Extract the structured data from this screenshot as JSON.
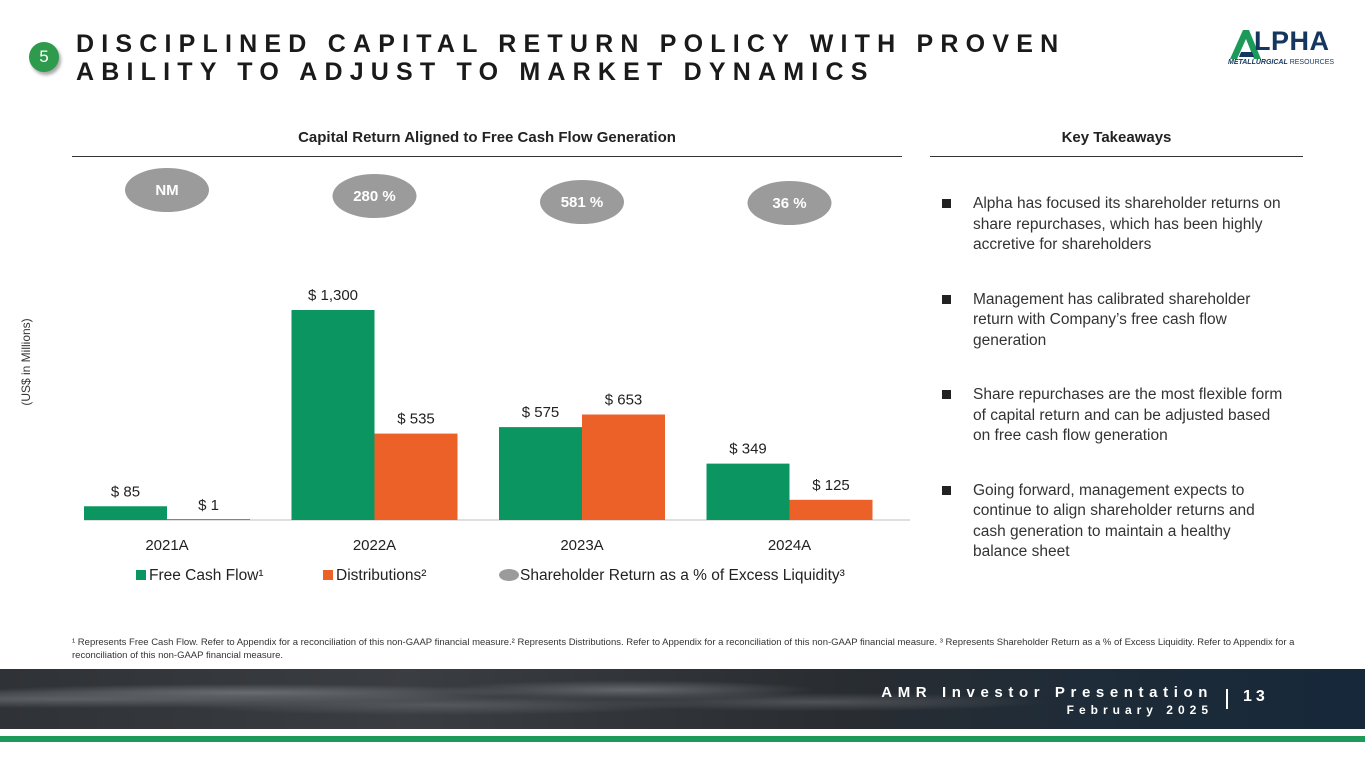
{
  "slide": {
    "badge_number": "5",
    "title": "DISCIPLINED CAPITAL RETURN POLICY WITH PROVEN ABILITY TO ADJUST TO MARKET DYNAMICS",
    "logo_word": "LPHA",
    "logo_sub_bold": "METALLURGICAL",
    "logo_sub_rest": " RESOURCES",
    "chart_heading": "Capital Return Aligned to Free Cash Flow Generation",
    "takeaways_heading": "Key Takeaways",
    "y_axis_label": "(US$ in Millions)",
    "footnote": "¹ Represents Free Cash Flow. Refer to Appendix for a reconciliation of this non-GAAP financial measure.² Represents Distributions. Refer to Appendix for a reconciliation of this non-GAAP financial measure. ³ Represents Shareholder Return as a % of Excess Liquidity. Refer to Appendix for a reconciliation of this non-GAAP financial measure.",
    "footer_line1": "AMR Investor Presentation",
    "footer_line2": "February 2025",
    "page_number": "13"
  },
  "takeaways": [
    "Alpha has focused its shareholder returns on share repurchases, which has been highly accretive for shareholders",
    "Management has calibrated shareholder return with Company’s free cash flow generation",
    "Share repurchases are the most flexible form of capital return and can be adjusted based on free cash flow generation",
    "Going forward, management expects to continue to align shareholder returns and cash generation to maintain a healthy balance sheet"
  ],
  "colors": {
    "fcf": "#0b9560",
    "distributions": "#ec6128",
    "ellipse": "#9b9b9b",
    "logo_green": "#1d9a5a",
    "logo_navy": "#15365e"
  },
  "chart_data": {
    "type": "bar",
    "categories": [
      "2021A",
      "2022A",
      "2023A",
      "2024A"
    ],
    "series": [
      {
        "name": "Free Cash Flow¹",
        "values": [
          85,
          1300,
          575,
          349
        ],
        "labels": [
          "$ 85",
          "$ 1,300",
          "$ 575",
          "$ 349"
        ]
      },
      {
        "name": "Distributions²",
        "values": [
          1,
          535,
          653,
          125
        ],
        "labels": [
          "$ 1",
          "$ 535",
          "$ 653",
          "$ 125"
        ]
      }
    ],
    "shareholder_return_pct": [
      "NM",
      "280 %",
      "581 %",
      "36 %"
    ],
    "legend": [
      "Free Cash Flow¹",
      "Distributions²",
      "Shareholder Return as a % of Excess Liquidity³"
    ],
    "legend_position": "bottom",
    "ylabel": "(US$ in Millions)",
    "ylim": [
      0,
      1300
    ],
    "grid": false
  }
}
